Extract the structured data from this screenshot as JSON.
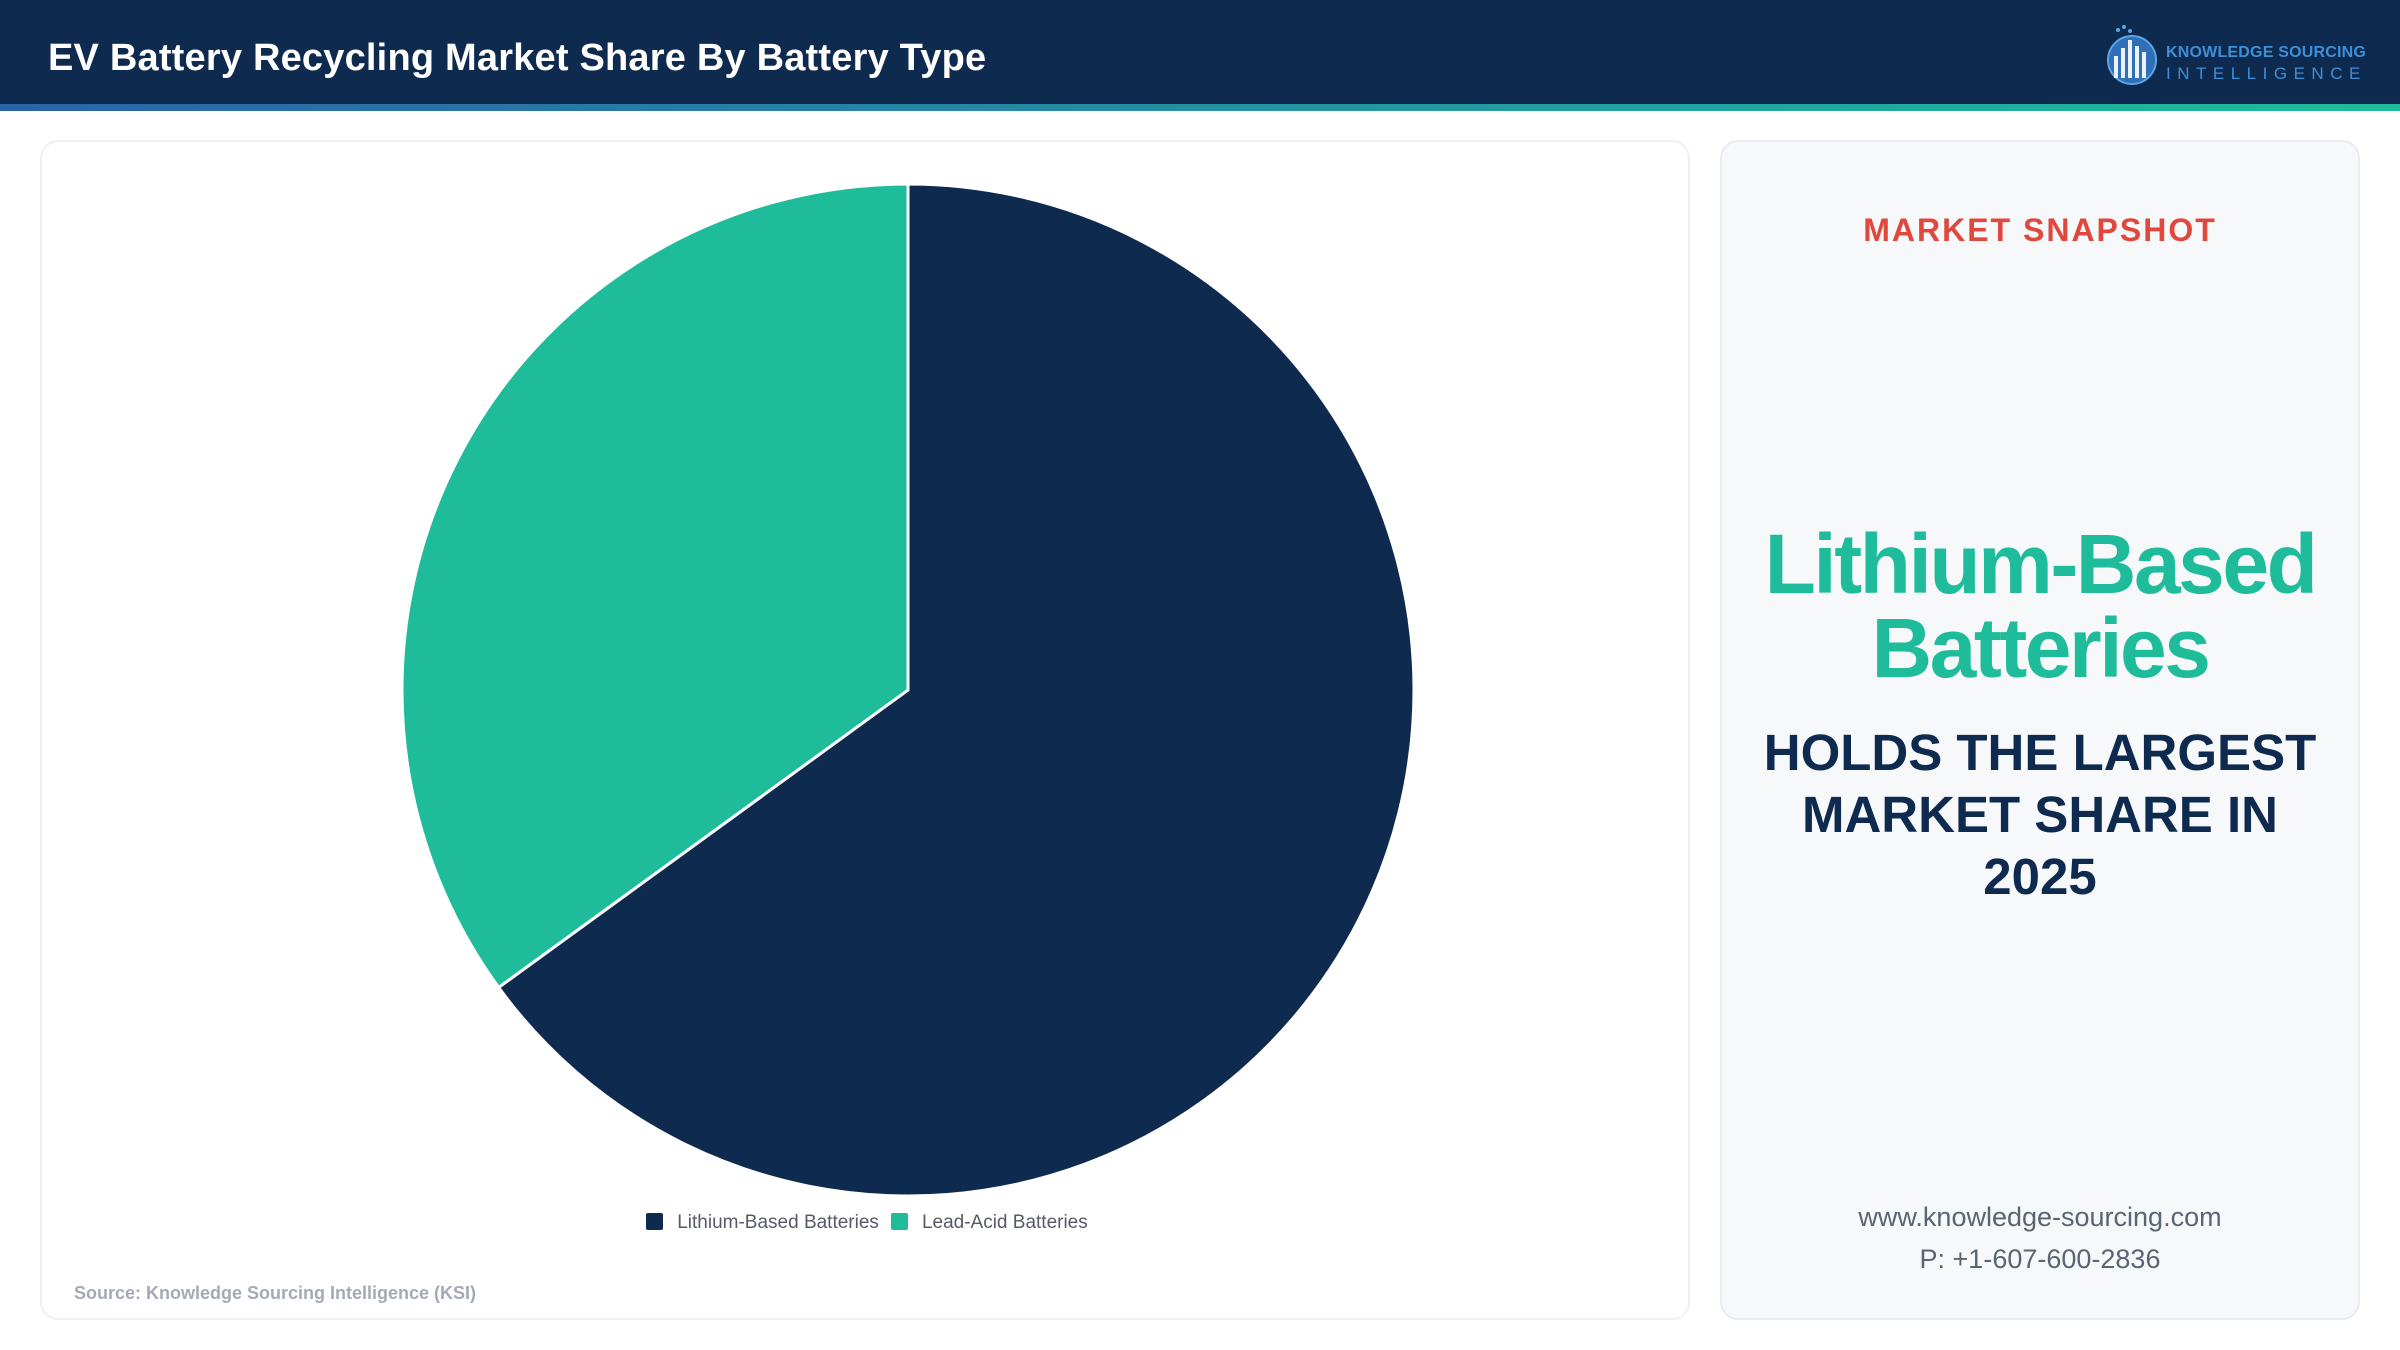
{
  "header": {
    "title": "EV Battery Recycling Market Share By Battery Type",
    "logo": {
      "line1": "KNOWLEDGE SOURCING",
      "line2": "INTELLIGENCE"
    }
  },
  "colors": {
    "navy": "#0f2a4f",
    "teal": "#1fbc9c",
    "accent_red": "#e0483e"
  },
  "chart_data": {
    "type": "pie",
    "start_angle_deg": 0,
    "direction": "clockwise",
    "slices": [
      {
        "label": "Lithium-Based Batteries",
        "value": 65,
        "color": "#0f2a4f"
      },
      {
        "label": "Lead-Acid Batteries",
        "value": 35,
        "color": "#1fbc9c"
      }
    ],
    "legend_position": "bottom",
    "source": "Source: Knowledge Sourcing Intelligence (KSI)"
  },
  "snapshot": {
    "label": "MARKET SNAPSHOT",
    "highlight_line1": "Lithium-Based",
    "highlight_line2": "Batteries",
    "statement": "HOLDS THE LARGEST MARKET SHARE IN 2025",
    "website": "www.knowledge-sourcing.com",
    "phone": "P: +1-607-600-2836"
  }
}
